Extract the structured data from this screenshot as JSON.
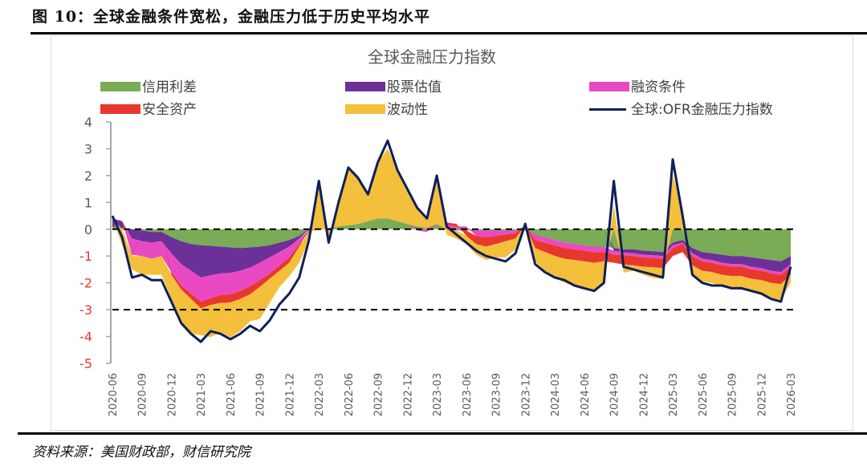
{
  "figure": {
    "title": "图 10：全球金融条件宽松，金融压力低于历史平均水平",
    "source": "资料来源：美国财政部，财信研究院"
  },
  "chart_data": {
    "type": "area",
    "subtype": "stacked-area-with-line",
    "title": "全球金融压力指数",
    "xlabel": "",
    "ylabel": "",
    "ylim": [
      -5,
      4
    ],
    "yticks": [
      4,
      3,
      2,
      1,
      0,
      -1,
      -2,
      -3,
      -4,
      -5
    ],
    "negative_tick_color": "#e8382e",
    "positive_tick_color": "#595959",
    "reference_lines": [
      0,
      -3
    ],
    "grid": false,
    "legend_position": "top",
    "x_tick_labels": [
      "2020-06",
      "2020-09",
      "2020-12",
      "2021-03",
      "2021-06",
      "2021-09",
      "2021-12",
      "2022-03",
      "2022-06",
      "2022-09",
      "2022-12",
      "2023-03",
      "2023-06",
      "2023-09",
      "2023-12",
      "2024-03",
      "2024-06",
      "2024-09",
      "2024-12",
      "2025-03",
      "2025-06",
      "2025-09",
      "2025-12",
      "2026-03"
    ],
    "x": [
      "2020-06",
      "2020-07",
      "2020-08",
      "2020-09",
      "2020-10",
      "2020-11",
      "2020-12",
      "2021-01",
      "2021-02",
      "2021-03",
      "2021-04",
      "2021-05",
      "2021-06",
      "2021-07",
      "2021-08",
      "2021-09",
      "2021-10",
      "2021-11",
      "2021-12",
      "2022-01",
      "2022-02",
      "2022-03",
      "2022-04",
      "2022-05",
      "2022-06",
      "2022-07",
      "2022-08",
      "2022-09",
      "2022-10",
      "2022-11",
      "2022-12",
      "2023-01",
      "2023-02",
      "2023-03",
      "2023-04",
      "2023-05",
      "2023-06",
      "2023-07",
      "2023-08",
      "2023-09",
      "2023-10",
      "2023-11",
      "2023-12",
      "2024-01",
      "2024-02",
      "2024-03",
      "2024-04",
      "2024-05",
      "2024-06",
      "2024-07",
      "2024-08",
      "2024-09",
      "2024-10",
      "2024-11",
      "2024-12",
      "2025-01",
      "2025-02",
      "2025-03",
      "2025-04",
      "2025-05",
      "2025-06",
      "2025-07",
      "2025-08",
      "2025-09",
      "2025-10",
      "2025-11",
      "2025-12",
      "2026-01",
      "2026-02",
      "2026-03"
    ],
    "series": [
      {
        "name": "信用利差",
        "kind": "area",
        "color": "#7aab57",
        "values": [
          0.1,
          0.05,
          0.0,
          -0.05,
          -0.1,
          -0.1,
          -0.3,
          -0.45,
          -0.55,
          -0.6,
          -0.62,
          -0.65,
          -0.68,
          -0.7,
          -0.68,
          -0.65,
          -0.6,
          -0.5,
          -0.4,
          -0.25,
          -0.05,
          0.0,
          0.05,
          0.1,
          0.15,
          0.2,
          0.3,
          0.4,
          0.4,
          0.3,
          0.2,
          0.1,
          0.05,
          0.2,
          0.0,
          -0.05,
          -0.05,
          -0.05,
          -0.05,
          -0.05,
          -0.05,
          -0.05,
          -0.05,
          -0.2,
          -0.3,
          -0.4,
          -0.5,
          -0.55,
          -0.6,
          -0.65,
          -0.65,
          -0.7,
          -0.75,
          -0.75,
          -0.8,
          -0.82,
          -0.85,
          -0.5,
          -0.4,
          -0.7,
          -0.85,
          -0.9,
          -0.95,
          -1.0,
          -1.0,
          -1.05,
          -1.1,
          -1.15,
          -1.2,
          -1.0
        ]
      },
      {
        "name": "股票估值",
        "kind": "area",
        "color": "#6b3198",
        "values": [
          0.3,
          0.25,
          -0.35,
          -0.4,
          -0.4,
          -0.35,
          -0.6,
          -0.85,
          -1.0,
          -1.2,
          -1.1,
          -1.0,
          -0.95,
          -0.85,
          -0.75,
          -0.6,
          -0.45,
          -0.35,
          -0.25,
          -0.1,
          0.0,
          0.0,
          0.0,
          0.0,
          0.0,
          0.0,
          0.0,
          0.0,
          0.0,
          0.0,
          0.0,
          0.0,
          0.0,
          0.0,
          0.0,
          0.0,
          0.0,
          0.0,
          0.0,
          0.0,
          0.0,
          0.0,
          0.0,
          0.0,
          0.0,
          0.0,
          0.0,
          0.0,
          0.0,
          0.0,
          0.0,
          -0.1,
          -0.12,
          -0.15,
          -0.15,
          -0.15,
          -0.15,
          -0.1,
          -0.1,
          -0.2,
          -0.25,
          -0.25,
          -0.3,
          -0.3,
          -0.3,
          -0.35,
          -0.35,
          -0.4,
          -0.4,
          -0.3
        ]
      },
      {
        "name": "融资条件",
        "kind": "area",
        "color": "#e94ac4",
        "values": [
          0.0,
          0.0,
          -0.6,
          -0.55,
          -0.6,
          -0.55,
          -0.7,
          -0.8,
          -0.85,
          -0.9,
          -0.85,
          -0.8,
          -0.8,
          -0.75,
          -0.7,
          -0.65,
          -0.6,
          -0.5,
          -0.4,
          -0.2,
          -0.05,
          0.0,
          0.0,
          0.0,
          0.0,
          0.0,
          0.0,
          0.0,
          0.0,
          0.0,
          0.0,
          -0.05,
          -0.1,
          0.0,
          0.15,
          0.1,
          0.1,
          -0.2,
          -0.25,
          -0.2,
          -0.15,
          -0.1,
          0.15,
          -0.2,
          -0.2,
          -0.2,
          -0.2,
          -0.2,
          -0.2,
          -0.2,
          -0.2,
          -0.15,
          -0.1,
          -0.1,
          -0.1,
          -0.1,
          -0.1,
          -0.1,
          -0.05,
          -0.1,
          -0.1,
          -0.1,
          -0.1,
          -0.1,
          -0.1,
          -0.1,
          -0.1,
          -0.1,
          -0.1,
          -0.1
        ]
      },
      {
        "name": "安全资产",
        "kind": "area",
        "color": "#e8382e",
        "values": [
          0.0,
          0.0,
          -0.05,
          0.0,
          0.0,
          0.0,
          -0.1,
          -0.15,
          -0.2,
          -0.25,
          -0.25,
          -0.3,
          -0.3,
          -0.3,
          -0.3,
          -0.25,
          -0.2,
          -0.2,
          -0.2,
          -0.1,
          0.0,
          0.0,
          0.0,
          0.0,
          0.0,
          0.0,
          0.0,
          0.0,
          0.0,
          0.0,
          0.0,
          0.0,
          0.0,
          0.0,
          0.1,
          0.1,
          -0.2,
          -0.3,
          -0.35,
          -0.3,
          -0.25,
          -0.2,
          0.0,
          -0.3,
          -0.35,
          -0.4,
          -0.4,
          -0.4,
          -0.4,
          -0.4,
          -0.35,
          -0.3,
          -0.35,
          -0.35,
          -0.35,
          -0.35,
          -0.35,
          -0.3,
          -0.3,
          -0.35,
          -0.35,
          -0.35,
          -0.35,
          -0.35,
          -0.35,
          -0.35,
          -0.35,
          -0.35,
          -0.35,
          -0.3
        ]
      },
      {
        "name": "波动性",
        "kind": "area",
        "color": "#f4bf3b",
        "values": [
          0.0,
          -0.6,
          -0.5,
          -0.7,
          -0.6,
          -0.7,
          -0.9,
          -1.2,
          -1.3,
          -1.0,
          -1.2,
          -1.1,
          -1.3,
          -1.2,
          -1.0,
          -1.2,
          -0.9,
          -0.6,
          -0.5,
          -0.6,
          -0.3,
          1.5,
          -0.5,
          1.0,
          2.2,
          1.8,
          1.0,
          2.1,
          2.6,
          1.9,
          1.3,
          0.7,
          0.4,
          1.8,
          -0.2,
          -0.3,
          -0.3,
          -0.4,
          -0.5,
          -0.5,
          -0.6,
          -0.4,
          0.1,
          -0.5,
          -0.7,
          -0.8,
          -0.9,
          -0.95,
          -1.0,
          -1.1,
          -0.8,
          0.9,
          -0.3,
          -0.2,
          -0.3,
          -0.4,
          -0.4,
          2.0,
          0.8,
          -0.3,
          -0.4,
          -0.4,
          -0.45,
          -0.45,
          -0.5,
          -0.5,
          -0.55,
          -0.6,
          -0.6,
          -0.3
        ]
      },
      {
        "name": "全球:OFR金融压力指数",
        "kind": "line",
        "color": "#0e1f5b",
        "values": [
          0.5,
          -0.3,
          -1.8,
          -1.7,
          -1.9,
          -1.9,
          -2.7,
          -3.5,
          -3.9,
          -4.2,
          -3.8,
          -3.9,
          -4.1,
          -3.9,
          -3.6,
          -3.8,
          -3.4,
          -2.8,
          -2.4,
          -1.8,
          -0.4,
          1.8,
          -0.5,
          1.0,
          2.3,
          1.9,
          1.3,
          2.5,
          3.3,
          2.2,
          1.5,
          0.8,
          0.4,
          2.0,
          0.1,
          -0.2,
          -0.5,
          -0.8,
          -1.0,
          -1.1,
          -1.2,
          -0.9,
          0.2,
          -1.3,
          -1.6,
          -1.8,
          -1.9,
          -2.1,
          -2.2,
          -2.3,
          -2.0,
          1.8,
          -1.4,
          -1.5,
          -1.6,
          -1.7,
          -1.8,
          2.6,
          0.5,
          -1.7,
          -2.0,
          -2.1,
          -2.1,
          -2.2,
          -2.2,
          -2.3,
          -2.4,
          -2.6,
          -2.7,
          -1.4
        ]
      }
    ]
  }
}
